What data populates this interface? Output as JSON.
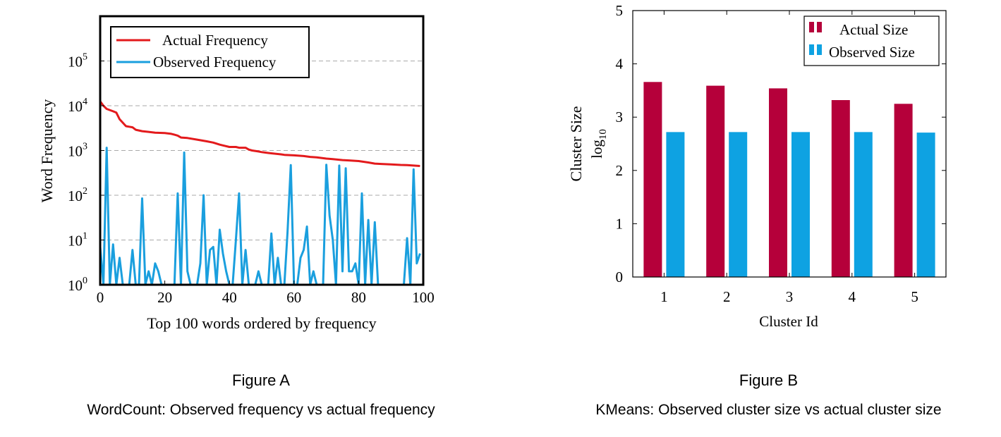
{
  "chart_data": [
    {
      "type": "line",
      "xlabel": "Top 100 words ordered by frequency",
      "ylabel": "Word Frequency",
      "yscale": "log",
      "xlim": [
        0,
        100
      ],
      "ylim": [
        1,
        1000000
      ],
      "xticks": [
        0,
        20,
        40,
        60,
        80,
        100
      ],
      "yticks": [
        {
          "base": "10",
          "exp": "0"
        },
        {
          "base": "10",
          "exp": "1"
        },
        {
          "base": "10",
          "exp": "2"
        },
        {
          "base": "10",
          "exp": "3"
        },
        {
          "base": "10",
          "exp": "4"
        },
        {
          "base": "10",
          "exp": "5"
        }
      ],
      "grid": "horizontal dashed",
      "legend_position": "top",
      "series": [
        {
          "name": "Actual Frequency",
          "color": "#e31a1c",
          "x": [
            0,
            1,
            2,
            4,
            5,
            6,
            8,
            9,
            10,
            11,
            13,
            15,
            17,
            20,
            22,
            23,
            24,
            25,
            27,
            30,
            33,
            35,
            37,
            38,
            40,
            42,
            43,
            45,
            46,
            47,
            49,
            50,
            52,
            56,
            57,
            60,
            63,
            65,
            67,
            70,
            72,
            75,
            77,
            80,
            83,
            85,
            87,
            90,
            93,
            95,
            97,
            99
          ],
          "y": [
            12500,
            10000,
            8500,
            7500,
            7000,
            5000,
            3500,
            3400,
            3300,
            2900,
            2700,
            2600,
            2500,
            2450,
            2350,
            2250,
            2150,
            1950,
            1900,
            1750,
            1600,
            1500,
            1350,
            1300,
            1200,
            1200,
            1150,
            1150,
            1050,
            1000,
            950,
            920,
            880,
            820,
            800,
            780,
            750,
            720,
            700,
            660,
            640,
            610,
            600,
            580,
            540,
            510,
            500,
            490,
            475,
            470,
            460,
            450
          ]
        },
        {
          "name": "Observed Frequency",
          "color": "#1a9fde",
          "x": [
            0,
            1,
            2,
            3,
            4,
            5,
            6,
            7,
            8,
            9,
            10,
            11,
            12,
            13,
            14,
            15,
            16,
            17,
            18,
            19,
            20,
            21,
            22,
            23,
            24,
            25,
            26,
            27,
            28,
            29,
            30,
            31,
            32,
            33,
            34,
            35,
            36,
            37,
            38,
            39,
            40,
            41,
            42,
            43,
            44,
            45,
            46,
            47,
            48,
            49,
            50,
            51,
            52,
            53,
            54,
            55,
            56,
            57,
            58,
            59,
            60,
            61,
            62,
            63,
            64,
            65,
            66,
            67,
            68,
            69,
            70,
            71,
            72,
            73,
            74,
            75,
            76,
            77,
            78,
            79,
            80,
            81,
            82,
            83,
            84,
            85,
            86,
            87,
            88,
            89,
            90,
            91,
            92,
            93,
            94,
            95,
            96,
            97,
            98,
            99
          ],
          "y": [
            7,
            1,
            1150,
            1,
            8,
            1,
            4,
            1,
            1,
            1,
            6,
            1,
            1,
            85,
            1,
            2,
            1,
            3,
            2,
            1,
            1,
            1,
            1,
            1,
            110,
            1,
            900,
            2,
            1,
            1,
            1,
            3,
            100,
            1,
            6,
            7,
            1,
            17,
            5,
            2,
            1,
            1,
            10,
            110,
            1,
            6,
            1,
            1,
            1,
            2,
            1,
            1,
            1,
            14,
            1,
            4,
            1,
            1,
            15,
            470,
            1,
            1,
            4,
            6,
            20,
            1,
            2,
            1,
            1,
            1,
            480,
            35,
            10,
            1,
            460,
            2,
            400,
            2,
            2,
            3,
            1,
            110,
            1,
            28,
            1,
            25,
            1,
            1,
            1,
            1,
            1,
            1,
            1,
            1,
            1,
            11,
            1,
            380,
            3,
            5
          ]
        }
      ]
    },
    {
      "type": "bar",
      "xlabel": "Cluster Id",
      "ylabel": "Cluster Size",
      "ylabel_sub": "log",
      "ylabel_subscript": "10",
      "categories": [
        "1",
        "2",
        "3",
        "4",
        "5"
      ],
      "ylim": [
        0,
        5
      ],
      "yticks": [
        "0",
        "1",
        "2",
        "3",
        "4",
        "5"
      ],
      "grid": "off",
      "legend_position": "top-right",
      "series": [
        {
          "name": "Actual Size",
          "color": "#b5003a",
          "values": [
            3.66,
            3.59,
            3.54,
            3.32,
            3.25
          ]
        },
        {
          "name": "Observed Size",
          "color": "#0ea2e2",
          "values": [
            2.72,
            2.72,
            2.72,
            2.72,
            2.71
          ]
        }
      ]
    }
  ],
  "captions": {
    "a_label": "Figure A",
    "a_text": "WordCount: Observed frequency vs actual frequency",
    "b_label": "Figure B",
    "b_text": "KMeans: Observed cluster size vs actual cluster size"
  }
}
